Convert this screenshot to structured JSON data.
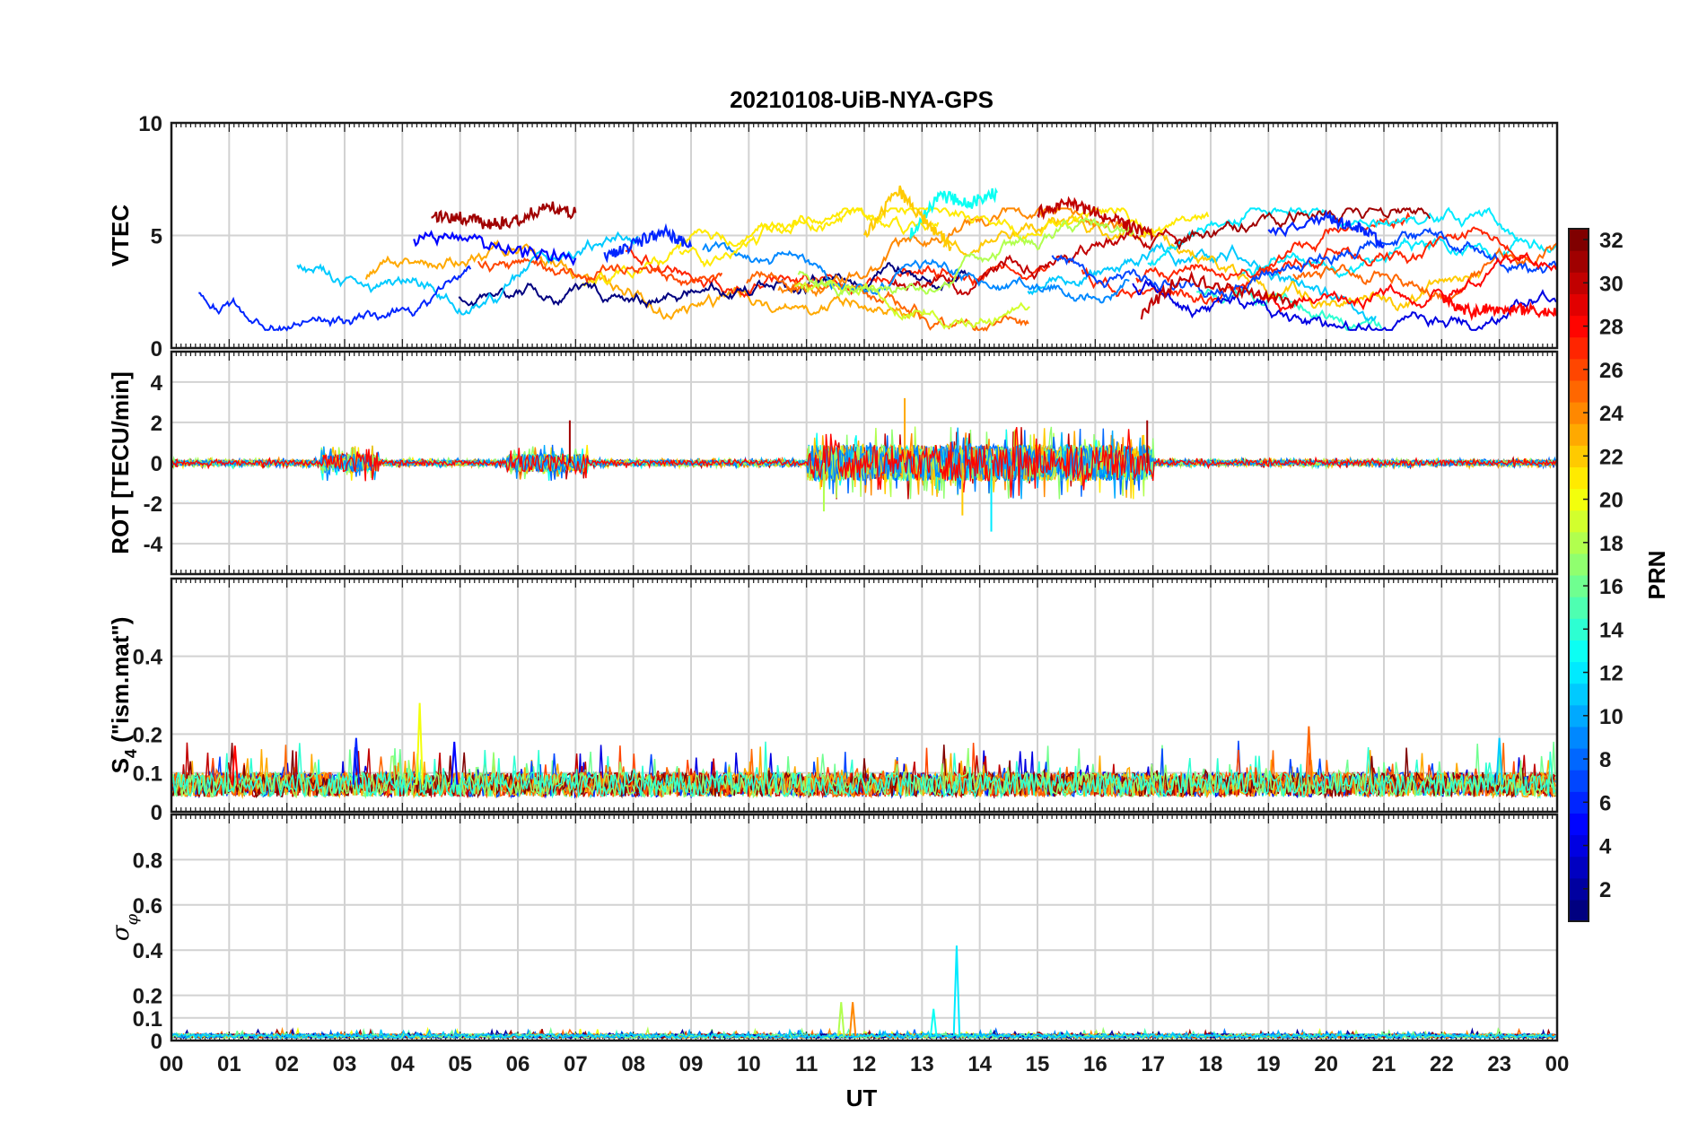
{
  "chart_data": {
    "type": "line",
    "title": "20210108-UiB-NYA-GPS",
    "xlabel": "UT",
    "x_ticks": [
      "00",
      "01",
      "02",
      "03",
      "04",
      "05",
      "06",
      "07",
      "08",
      "09",
      "10",
      "11",
      "12",
      "13",
      "14",
      "15",
      "16",
      "17",
      "18",
      "19",
      "20",
      "21",
      "22",
      "23",
      "00"
    ],
    "xlim": [
      0,
      24
    ],
    "grid": true,
    "colorbar": {
      "label": "PRN",
      "range": [
        1,
        32
      ],
      "colormap": "jet",
      "ticks": [
        2,
        4,
        6,
        8,
        10,
        12,
        14,
        16,
        18,
        20,
        22,
        24,
        26,
        28,
        30,
        32
      ],
      "tick_labels": [
        "2",
        "4",
        "6",
        "8",
        "10",
        "12",
        "14",
        "16",
        "18",
        "20",
        "22",
        "24",
        "26",
        "28",
        "30",
        "32"
      ]
    },
    "panels": [
      {
        "id": "vtec",
        "ylabel": "VTEC",
        "ylim": [
          0,
          10
        ],
        "yticks": [
          0,
          5,
          10
        ],
        "ytick_labels": [
          "0",
          "5",
          "10"
        ],
        "series": [
          {
            "prn": 31,
            "x": [
              4.5,
              5.0,
              5.5,
              6.0,
              6.5,
              7.0
            ],
            "y": [
              5.9,
              5.8,
              5.5,
              5.7,
              6.3,
              6.0
            ]
          },
          {
            "prn": 5,
            "x": [
              4.2,
              5.0,
              6.0,
              7.0
            ],
            "y": [
              4.8,
              5.0,
              4.3,
              4.0
            ]
          },
          {
            "prn": 6,
            "x": [
              7.5,
              8.0,
              8.5,
              9.0
            ],
            "y": [
              4.0,
              4.6,
              5.2,
              4.5
            ]
          },
          {
            "prn": 13,
            "x": [
              12.8,
              13.3,
              13.8,
              14.3
            ],
            "y": [
              5.0,
              6.8,
              6.4,
              6.9
            ]
          },
          {
            "prn": 22,
            "x": [
              12.0,
              12.6,
              13.0,
              13.5
            ],
            "y": [
              5.0,
              7.0,
              5.8,
              4.5
            ]
          },
          {
            "prn": 30,
            "x": [
              15.0,
              15.5,
              16.0,
              16.5,
              17.0
            ],
            "y": [
              6.0,
              6.5,
              6.0,
              5.5,
              5.0
            ]
          },
          {
            "prn": 30,
            "x": [
              16.8,
              17.5,
              18.5,
              19.5
            ],
            "y": [
              1.5,
              3.2,
              2.5,
              2.0
            ]
          },
          {
            "prn": 6,
            "x": [
              19.0,
              20.0,
              20.5,
              21.0
            ],
            "y": [
              5.0,
              5.8,
              5.4,
              4.6
            ]
          },
          {
            "prn": 28,
            "x": [
              22.0,
              22.5,
              23.0,
              23.5,
              24.0
            ],
            "y": [
              2.2,
              1.6,
              1.8,
              1.7,
              1.6
            ]
          }
        ]
      },
      {
        "id": "rot",
        "ylabel": "ROT [TECU/min]",
        "ylim": [
          -5.5,
          5.5
        ],
        "yticks": [
          -4,
          -2,
          0,
          2,
          4
        ],
        "ytick_labels": [
          "-4",
          "-2",
          "0",
          "2",
          "4"
        ],
        "notable_extremes": [
          {
            "prn": 23,
            "x": 12.7,
            "y": 3.2
          },
          {
            "prn": 12,
            "x": 14.2,
            "y": -3.4
          },
          {
            "prn": 22,
            "x": 13.7,
            "y": -2.6
          },
          {
            "prn": 31,
            "x": 6.9,
            "y": 2.1
          },
          {
            "prn": 31,
            "x": 16.9,
            "y": 2.1
          },
          {
            "prn": 18,
            "x": 11.3,
            "y": -2.4
          }
        ]
      },
      {
        "id": "s4",
        "ylabel": "S4 (\"ism.mat\")",
        "ylim": [
          0,
          0.6
        ],
        "yticks": [
          0,
          0.1,
          0.2,
          0.4
        ],
        "ytick_labels": [
          "0",
          "0.1",
          "0.2",
          "0.4"
        ],
        "baseline": 0.07,
        "notable_peaks": [
          {
            "prn": 20,
            "x": 4.3,
            "y": 0.28
          },
          {
            "prn": 25,
            "x": 19.7,
            "y": 0.22
          },
          {
            "prn": 6,
            "x": 3.2,
            "y": 0.19
          },
          {
            "prn": 11,
            "x": 23.0,
            "y": 0.19
          },
          {
            "prn": 5,
            "x": 4.9,
            "y": 0.18
          },
          {
            "prn": 28,
            "x": 1.1,
            "y": 0.17
          }
        ]
      },
      {
        "id": "sigma_phi",
        "ylabel": "σφ",
        "ylim": [
          0,
          1
        ],
        "yticks": [
          0,
          0.1,
          0.2,
          0.4,
          0.6,
          0.8
        ],
        "ytick_labels": [
          "0",
          "0.1",
          "0.2",
          "0.4",
          "0.6",
          "0.8"
        ],
        "baseline": 0.02,
        "notable_peaks": [
          {
            "prn": 12,
            "x": 13.6,
            "y": 0.42
          },
          {
            "prn": 18,
            "x": 11.6,
            "y": 0.17
          },
          {
            "prn": 24,
            "x": 11.8,
            "y": 0.17
          },
          {
            "prn": 13,
            "x": 13.2,
            "y": 0.14
          }
        ]
      }
    ]
  }
}
